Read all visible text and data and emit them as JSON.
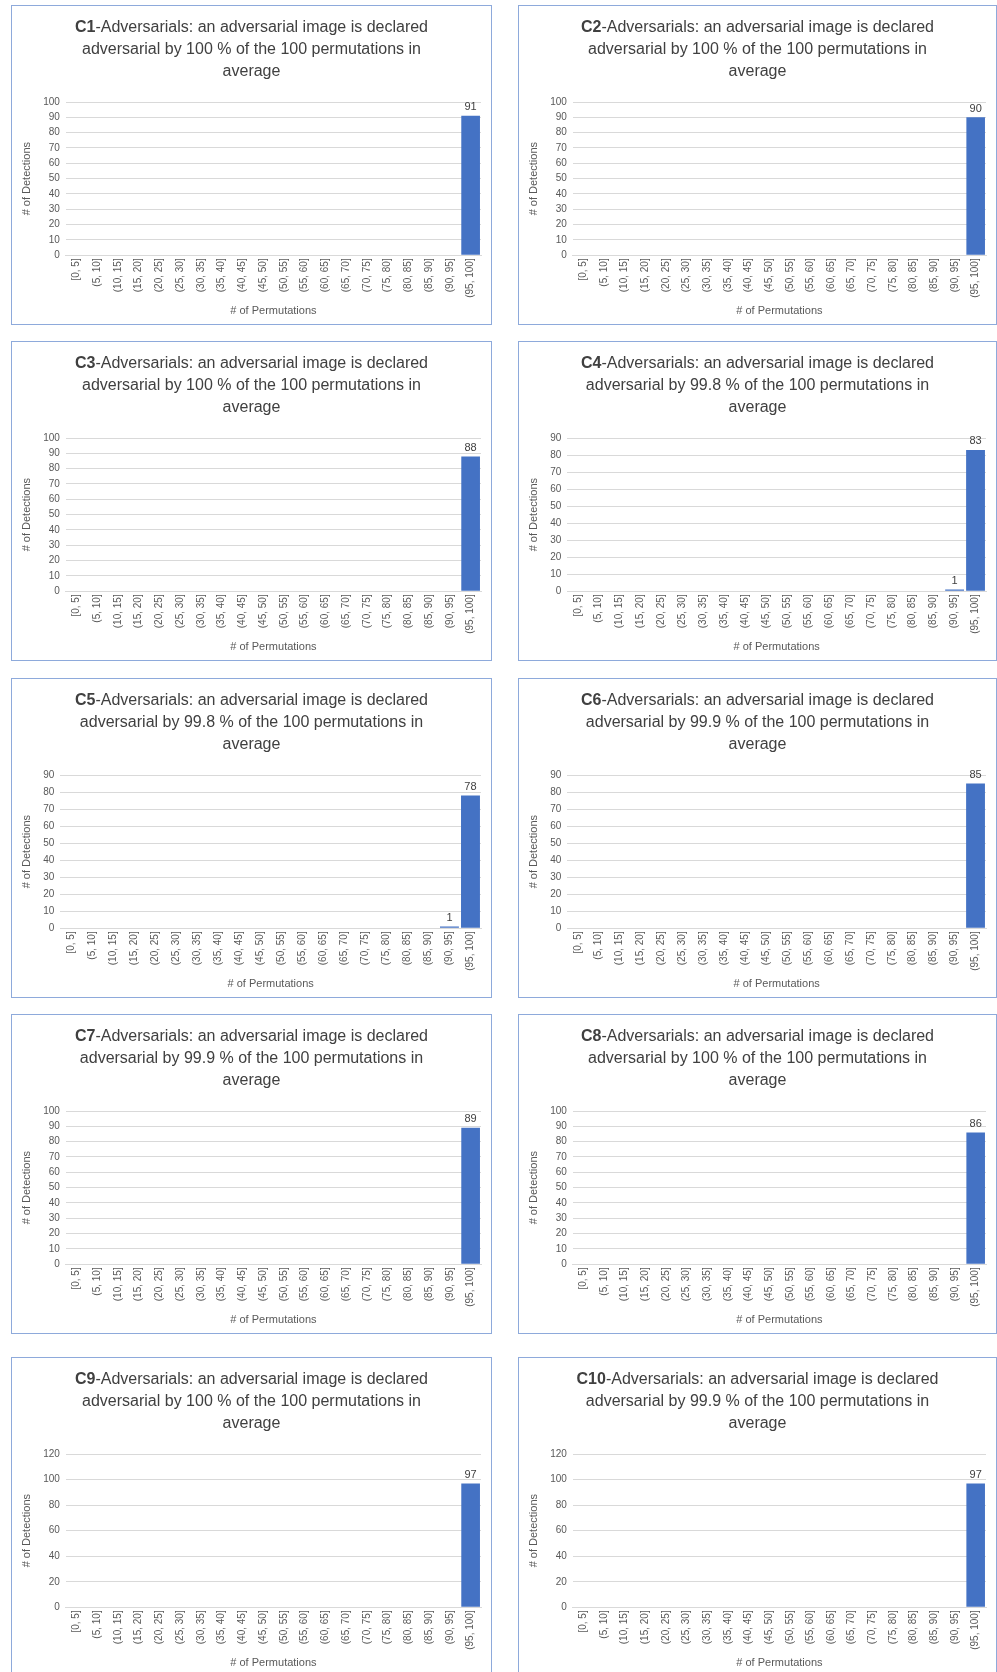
{
  "chart_data": [
    {
      "type": "bar",
      "title": "C1-Adversarials: an adversarial image is declared adversarial by 100 % of the 100 permutations in average",
      "xlabel": "# of Permutations",
      "ylabel": "# of Detections",
      "categories": [
        "[0, 5]",
        "(5, 10]",
        "(10, 15]",
        "(15, 20]",
        "(20, 25]",
        "(25, 30]",
        "(30, 35]",
        "(35, 40]",
        "(40, 45]",
        "(45, 50]",
        "(50, 55]",
        "(55, 60]",
        "(60, 65]",
        "(65, 70]",
        "(70, 75]",
        "(75, 80]",
        "(80, 85]",
        "(85, 90]",
        "(90, 95]",
        "(95, 100]"
      ],
      "values": [
        0,
        0,
        0,
        0,
        0,
        0,
        0,
        0,
        0,
        0,
        0,
        0,
        0,
        0,
        0,
        0,
        0,
        0,
        0,
        91
      ],
      "value_labels": [
        null,
        null,
        null,
        null,
        null,
        null,
        null,
        null,
        null,
        null,
        null,
        null,
        null,
        null,
        null,
        null,
        null,
        null,
        null,
        "91"
      ],
      "color": "#4472c4",
      "ylim": [
        0,
        100
      ],
      "yticks": [
        0,
        10,
        20,
        30,
        40,
        50,
        60,
        70,
        80,
        90,
        100
      ],
      "grid": "y",
      "legend": false
    },
    {
      "type": "bar",
      "title": "C2-Adversarials: an adversarial image is declared adversarial by 100 % of the 100 permutations in average",
      "xlabel": "# of Permutations",
      "ylabel": "# of Detections",
      "categories": [
        "[0, 5]",
        "(5, 10]",
        "(10, 15]",
        "(15, 20]",
        "(20, 25]",
        "(25, 30]",
        "(30, 35]",
        "(35, 40]",
        "(40, 45]",
        "(45, 50]",
        "(50, 55]",
        "(55, 60]",
        "(60, 65]",
        "(65, 70]",
        "(70, 75]",
        "(75, 80]",
        "(80, 85]",
        "(85, 90]",
        "(90, 95]",
        "(95, 100]"
      ],
      "values": [
        0,
        0,
        0,
        0,
        0,
        0,
        0,
        0,
        0,
        0,
        0,
        0,
        0,
        0,
        0,
        0,
        0,
        0,
        0,
        90
      ],
      "value_labels": [
        null,
        null,
        null,
        null,
        null,
        null,
        null,
        null,
        null,
        null,
        null,
        null,
        null,
        null,
        null,
        null,
        null,
        null,
        null,
        "90"
      ],
      "color": "#4472c4",
      "ylim": [
        0,
        100
      ],
      "yticks": [
        0,
        10,
        20,
        30,
        40,
        50,
        60,
        70,
        80,
        90,
        100
      ],
      "grid": "y",
      "legend": false
    },
    {
      "type": "bar",
      "title": "C3-Adversarials: an adversarial image is declared adversarial by 100 % of the 100 permutations in average",
      "xlabel": "# of Permutations",
      "ylabel": "# of Detections",
      "categories": [
        "[0, 5]",
        "(5, 10]",
        "(10, 15]",
        "(15, 20]",
        "(20, 25]",
        "(25, 30]",
        "(30, 35]",
        "(35, 40]",
        "(40, 45]",
        "(45, 50]",
        "(50, 55]",
        "(55, 60]",
        "(60, 65]",
        "(65, 70]",
        "(70, 75]",
        "(75, 80]",
        "(80, 85]",
        "(85, 90]",
        "(90, 95]",
        "(95, 100]"
      ],
      "values": [
        0,
        0,
        0,
        0,
        0,
        0,
        0,
        0,
        0,
        0,
        0,
        0,
        0,
        0,
        0,
        0,
        0,
        0,
        0,
        88
      ],
      "value_labels": [
        null,
        null,
        null,
        null,
        null,
        null,
        null,
        null,
        null,
        null,
        null,
        null,
        null,
        null,
        null,
        null,
        null,
        null,
        null,
        "88"
      ],
      "color": "#4472c4",
      "ylim": [
        0,
        100
      ],
      "yticks": [
        0,
        10,
        20,
        30,
        40,
        50,
        60,
        70,
        80,
        90,
        100
      ],
      "grid": "y",
      "legend": false
    },
    {
      "type": "bar",
      "title": "C4-Adversarials: an adversarial image is declared adversarial by 99.8 % of the 100 permutations in average",
      "xlabel": "# of Permutations",
      "ylabel": "# of Detections",
      "categories": [
        "[0, 5]",
        "(5, 10]",
        "(10, 15]",
        "(15, 20]",
        "(20, 25]",
        "(25, 30]",
        "(30, 35]",
        "(35, 40]",
        "(40, 45]",
        "(45, 50]",
        "(50, 55]",
        "(55, 60]",
        "(60, 65]",
        "(65, 70]",
        "(70, 75]",
        "(75, 80]",
        "(80, 85]",
        "(85, 90]",
        "(90, 95]",
        "(95, 100]"
      ],
      "values": [
        0,
        0,
        0,
        0,
        0,
        0,
        0,
        0,
        0,
        0,
        0,
        0,
        0,
        0,
        0,
        0,
        0,
        0,
        1,
        83
      ],
      "value_labels": [
        null,
        null,
        null,
        null,
        null,
        null,
        null,
        null,
        null,
        null,
        null,
        null,
        null,
        null,
        null,
        null,
        null,
        null,
        "1",
        "83"
      ],
      "color": "#4472c4",
      "ylim": [
        0,
        90
      ],
      "yticks": [
        0,
        10,
        20,
        30,
        40,
        50,
        60,
        70,
        80,
        90
      ],
      "grid": "y",
      "legend": false
    },
    {
      "type": "bar",
      "title": "C5-Adversarials: an adversarial image is declared adversarial by 99.8 % of the 100 permutations in average",
      "xlabel": "# of Permutations",
      "ylabel": "# of Detections",
      "categories": [
        "[0, 5]",
        "(5, 10]",
        "(10, 15]",
        "(15, 20]",
        "(20, 25]",
        "(25, 30]",
        "(30, 35]",
        "(35, 40]",
        "(40, 45]",
        "(45, 50]",
        "(50, 55]",
        "(55, 60]",
        "(60, 65]",
        "(65, 70]",
        "(70, 75]",
        "(75, 80]",
        "(80, 85]",
        "(85, 90]",
        "(90, 95]",
        "(95, 100]"
      ],
      "values": [
        0,
        0,
        0,
        0,
        0,
        0,
        0,
        0,
        0,
        0,
        0,
        0,
        0,
        0,
        0,
        0,
        0,
        0,
        1,
        78
      ],
      "value_labels": [
        null,
        null,
        null,
        null,
        null,
        null,
        null,
        null,
        null,
        null,
        null,
        null,
        null,
        null,
        null,
        null,
        null,
        null,
        "1",
        "78"
      ],
      "color": "#4472c4",
      "ylim": [
        0,
        90
      ],
      "yticks": [
        0,
        10,
        20,
        30,
        40,
        50,
        60,
        70,
        80,
        90
      ],
      "grid": "y",
      "legend": false
    },
    {
      "type": "bar",
      "title": "C6-Adversarials: an adversarial image is declared adversarial by 99.9 % of the 100 permutations in average",
      "xlabel": "# of Permutations",
      "ylabel": "# of Detections",
      "categories": [
        "[0, 5]",
        "(5, 10]",
        "(10, 15]",
        "(15, 20]",
        "(20, 25]",
        "(25, 30]",
        "(30, 35]",
        "(35, 40]",
        "(40, 45]",
        "(45, 50]",
        "(50, 55]",
        "(55, 60]",
        "(60, 65]",
        "(65, 70]",
        "(70, 75]",
        "(75, 80]",
        "(80, 85]",
        "(85, 90]",
        "(90, 95]",
        "(95, 100]"
      ],
      "values": [
        0,
        0,
        0,
        0,
        0,
        0,
        0,
        0,
        0,
        0,
        0,
        0,
        0,
        0,
        0,
        0,
        0,
        0,
        0,
        85
      ],
      "value_labels": [
        null,
        null,
        null,
        null,
        null,
        null,
        null,
        null,
        null,
        null,
        null,
        null,
        null,
        null,
        null,
        null,
        null,
        null,
        null,
        "85"
      ],
      "color": "#4472c4",
      "ylim": [
        0,
        90
      ],
      "yticks": [
        0,
        10,
        20,
        30,
        40,
        50,
        60,
        70,
        80,
        90
      ],
      "grid": "y",
      "legend": false
    },
    {
      "type": "bar",
      "title": "C7-Adversarials: an adversarial image is declared adversarial by 99.9 % of the 100 permutations in average",
      "xlabel": "# of Permutations",
      "ylabel": "# of Detections",
      "categories": [
        "[0, 5]",
        "(5, 10]",
        "(10, 15]",
        "(15, 20]",
        "(20, 25]",
        "(25, 30]",
        "(30, 35]",
        "(35, 40]",
        "(40, 45]",
        "(45, 50]",
        "(50, 55]",
        "(55, 60]",
        "(60, 65]",
        "(65, 70]",
        "(70, 75]",
        "(75, 80]",
        "(80, 85]",
        "(85, 90]",
        "(90, 95]",
        "(95, 100]"
      ],
      "values": [
        0,
        0,
        0,
        0,
        0,
        0,
        0,
        0,
        0,
        0,
        0,
        0,
        0,
        0,
        0,
        0,
        0,
        0,
        0,
        89
      ],
      "value_labels": [
        null,
        null,
        null,
        null,
        null,
        null,
        null,
        null,
        null,
        null,
        null,
        null,
        null,
        null,
        null,
        null,
        null,
        null,
        null,
        "89"
      ],
      "color": "#4472c4",
      "ylim": [
        0,
        100
      ],
      "yticks": [
        0,
        10,
        20,
        30,
        40,
        50,
        60,
        70,
        80,
        90,
        100
      ],
      "grid": "y",
      "legend": false
    },
    {
      "type": "bar",
      "title": "C8-Adversarials: an adversarial image is declared adversarial by 100 % of the 100 permutations in average",
      "xlabel": "# of Permutations",
      "ylabel": "# of Detections",
      "categories": [
        "[0, 5]",
        "(5, 10]",
        "(10, 15]",
        "(15, 20]",
        "(20, 25]",
        "(25, 30]",
        "(30, 35]",
        "(35, 40]",
        "(40, 45]",
        "(45, 50]",
        "(50, 55]",
        "(55, 60]",
        "(60, 65]",
        "(65, 70]",
        "(70, 75]",
        "(75, 80]",
        "(80, 85]",
        "(85, 90]",
        "(90, 95]",
        "(95, 100]"
      ],
      "values": [
        0,
        0,
        0,
        0,
        0,
        0,
        0,
        0,
        0,
        0,
        0,
        0,
        0,
        0,
        0,
        0,
        0,
        0,
        0,
        86
      ],
      "value_labels": [
        null,
        null,
        null,
        null,
        null,
        null,
        null,
        null,
        null,
        null,
        null,
        null,
        null,
        null,
        null,
        null,
        null,
        null,
        null,
        "86"
      ],
      "color": "#4472c4",
      "ylim": [
        0,
        100
      ],
      "yticks": [
        0,
        10,
        20,
        30,
        40,
        50,
        60,
        70,
        80,
        90,
        100
      ],
      "grid": "y",
      "legend": false
    },
    {
      "type": "bar",
      "title": "C9-Adversarials: an adversarial image is declared adversarial by 100 % of the 100 permutations in average",
      "xlabel": "# of Permutations",
      "ylabel": "# of Detections",
      "categories": [
        "[0, 5]",
        "(5, 10]",
        "(10, 15]",
        "(15, 20]",
        "(20, 25]",
        "(25, 30]",
        "(30, 35]",
        "(35, 40]",
        "(40, 45]",
        "(45, 50]",
        "(50, 55]",
        "(55, 60]",
        "(60, 65]",
        "(65, 70]",
        "(70, 75]",
        "(75, 80]",
        "(80, 85]",
        "(85, 90]",
        "(90, 95]",
        "(95, 100]"
      ],
      "values": [
        0,
        0,
        0,
        0,
        0,
        0,
        0,
        0,
        0,
        0,
        0,
        0,
        0,
        0,
        0,
        0,
        0,
        0,
        0,
        97
      ],
      "value_labels": [
        null,
        null,
        null,
        null,
        null,
        null,
        null,
        null,
        null,
        null,
        null,
        null,
        null,
        null,
        null,
        null,
        null,
        null,
        null,
        "97"
      ],
      "color": "#4472c4",
      "ylim": [
        0,
        120
      ],
      "yticks": [
        0,
        20,
        40,
        60,
        80,
        100,
        120
      ],
      "grid": "y",
      "legend": false
    },
    {
      "type": "bar",
      "title": "C10-Adversarials: an adversarial image is declared adversarial by 99.9 % of the 100 permutations in average",
      "xlabel": "# of Permutations",
      "ylabel": "# of Detections",
      "categories": [
        "[0, 5]",
        "(5, 10]",
        "(10, 15]",
        "(15, 20]",
        "(20, 25]",
        "(25, 30]",
        "(30, 35]",
        "(35, 40]",
        "(40, 45]",
        "(45, 50]",
        "(50, 55]",
        "(55, 60]",
        "(60, 65]",
        "(65, 70]",
        "(70, 75]",
        "(75, 80]",
        "(80, 85]",
        "(85, 90]",
        "(90, 95]",
        "(95, 100]"
      ],
      "values": [
        0,
        0,
        0,
        0,
        0,
        0,
        0,
        0,
        0,
        0,
        0,
        0,
        0,
        0,
        0,
        0,
        0,
        0,
        0,
        97
      ],
      "value_labels": [
        null,
        null,
        null,
        null,
        null,
        null,
        null,
        null,
        null,
        null,
        null,
        null,
        null,
        null,
        null,
        null,
        null,
        null,
        null,
        "97"
      ],
      "color": "#4472c4",
      "ylim": [
        0,
        120
      ],
      "yticks": [
        0,
        20,
        40,
        60,
        80,
        100,
        120
      ],
      "grid": "y",
      "legend": false
    }
  ]
}
